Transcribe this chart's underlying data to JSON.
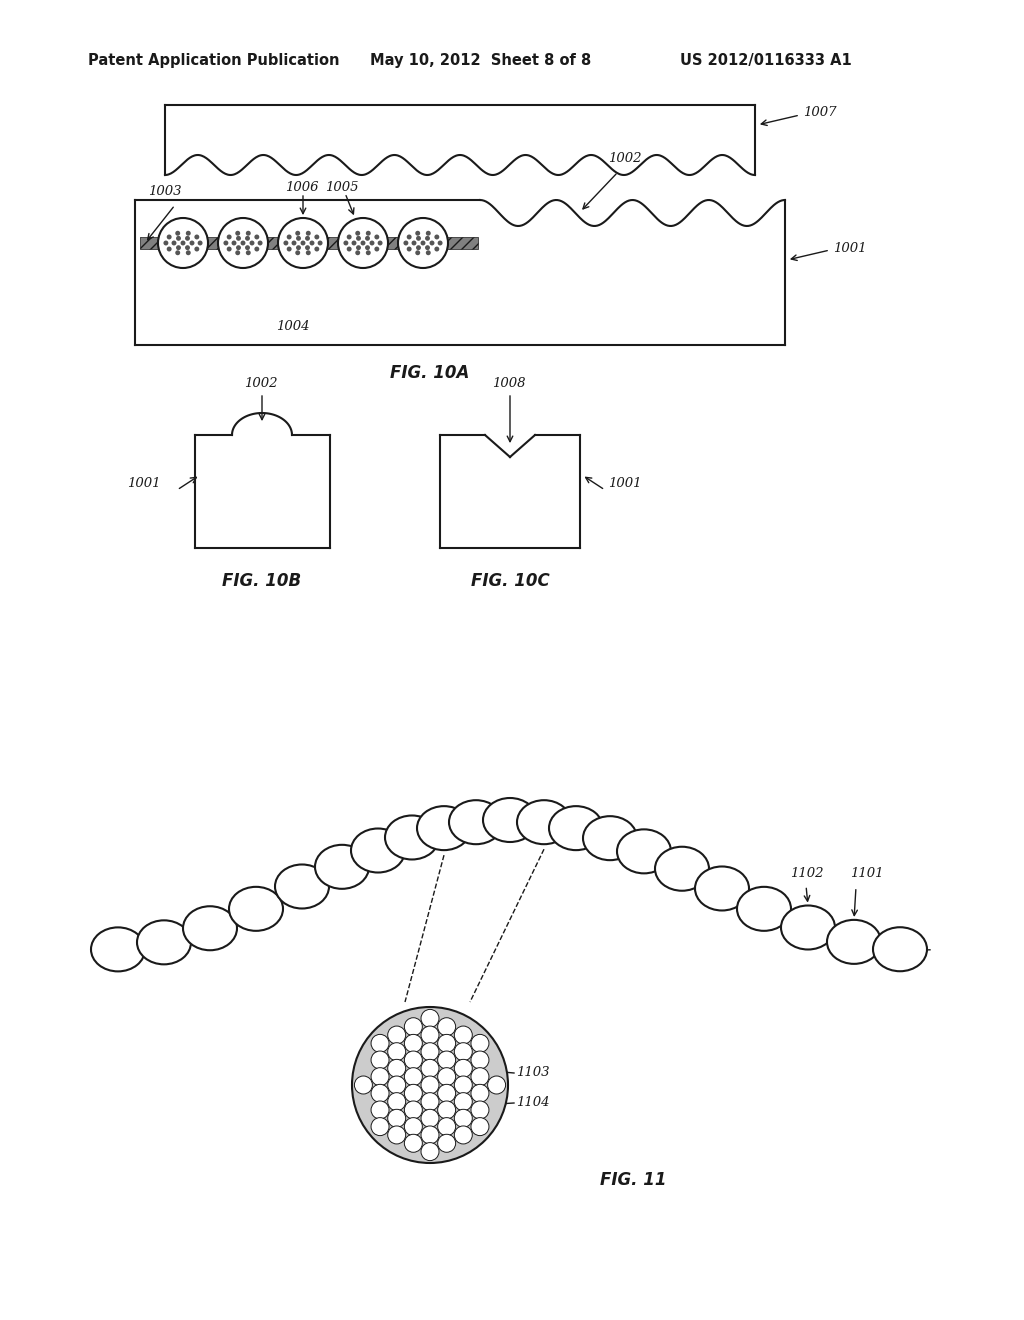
{
  "bg_color": "#ffffff",
  "header_text": "Patent Application Publication",
  "header_date": "May 10, 2012  Sheet 8 of 8",
  "header_patent": "US 2012/0116333 A1",
  "fig10a_label": "FIG. 10A",
  "fig10b_label": "FIG. 10B",
  "fig10c_label": "FIG. 10C",
  "fig11_label": "FIG. 11",
  "line_color": "#1a1a1a",
  "lw_main": 1.5,
  "lw_thin": 1.0
}
